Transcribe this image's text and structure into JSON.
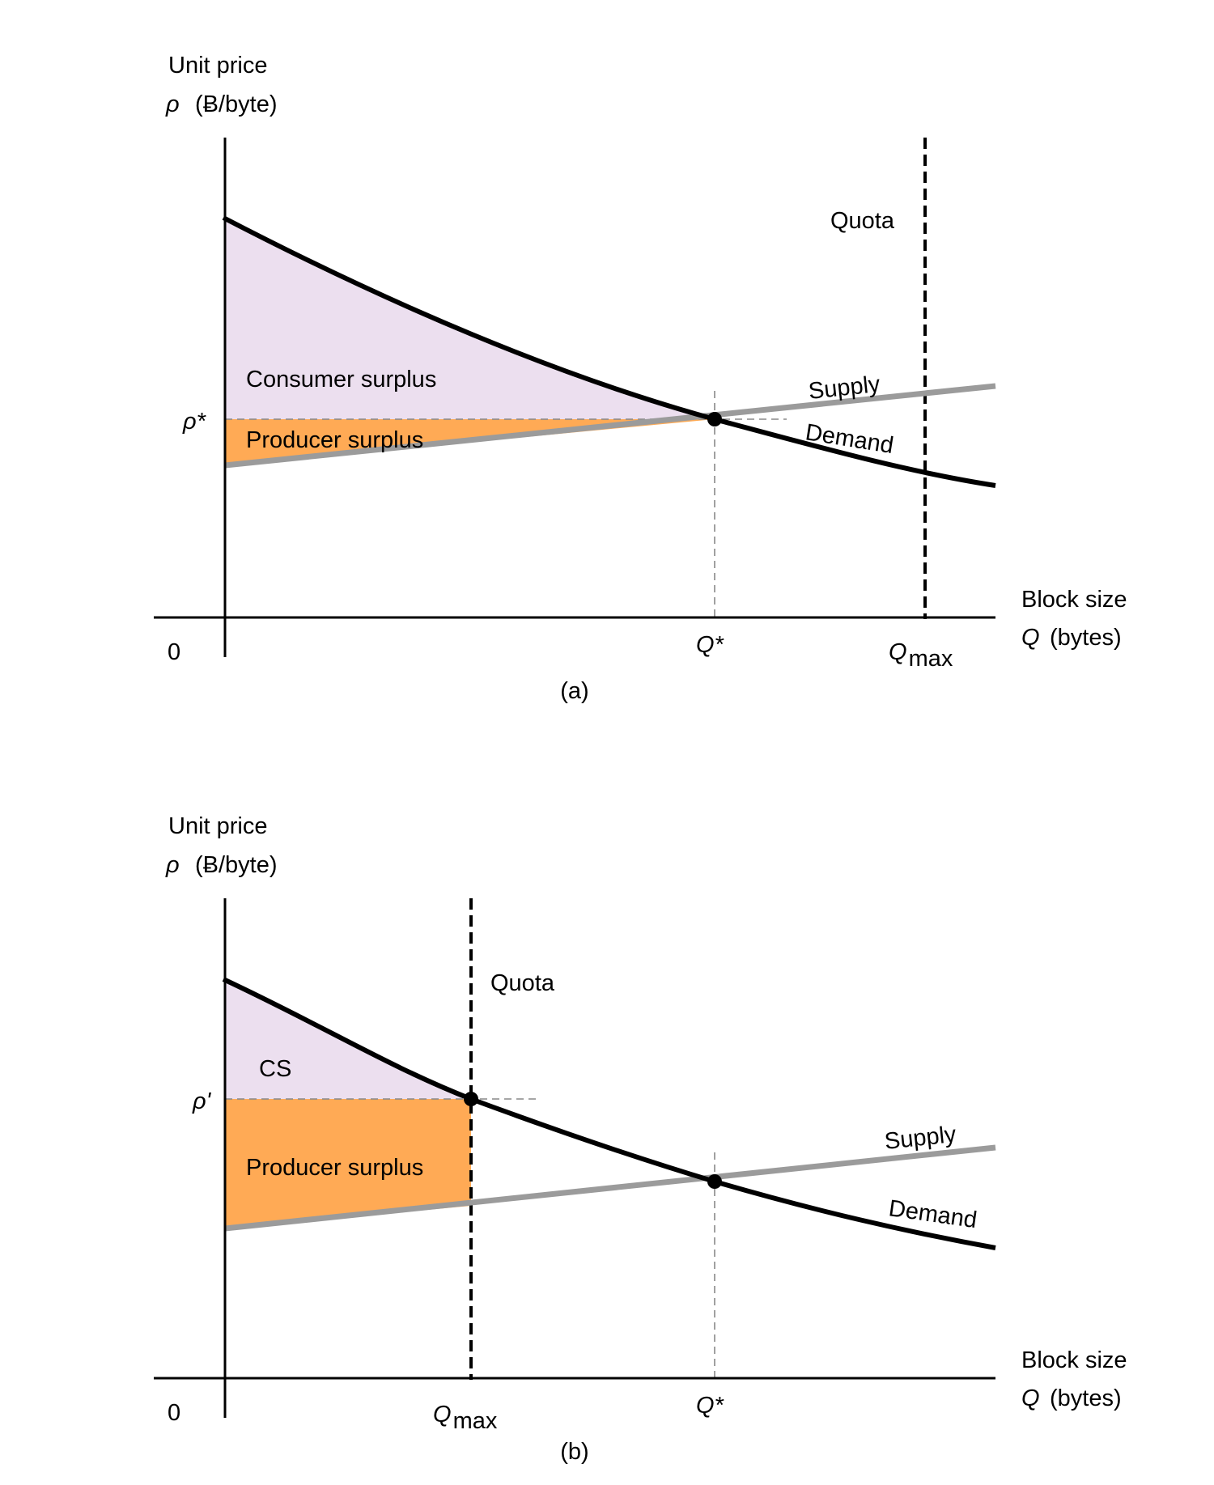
{
  "colors": {
    "consumer_surplus_fill": "#ECDFEF",
    "producer_surplus_fill": "#FFAA55",
    "supply_line": "#9B9B9B",
    "demand_line": "#000000",
    "reference_line": "#888888",
    "quota_line": "#000000",
    "axis": "#000000"
  },
  "panels": [
    {
      "caption": "(a)",
      "y_axis": {
        "label_line1": "Unit price",
        "symbol": "ρ",
        "unit": "(Ƀ/byte)"
      },
      "x_axis": {
        "label_line1": "Block size",
        "symbol": "Q",
        "unit": "(bytes)"
      },
      "origin_label": "0",
      "price_label": "ρ*",
      "qstar_label": "Q*",
      "qmax_base": "Q",
      "qmax_sub": "max",
      "quota_label": "Quota",
      "supply_label": "Supply",
      "demand_label": "Demand",
      "upper_area_label": "Consumer surplus",
      "lower_area_label": "Producer surplus"
    },
    {
      "caption": "(b)",
      "y_axis": {
        "label_line1": "Unit price",
        "symbol": "ρ",
        "unit": "(Ƀ/byte)"
      },
      "x_axis": {
        "label_line1": "Block size",
        "symbol": "Q",
        "unit": "(bytes)"
      },
      "origin_label": "0",
      "price_label": "ρ'",
      "qstar_label": "Q*",
      "qmax_base": "Q",
      "qmax_sub": "max",
      "quota_label": "Quota",
      "supply_label": "Supply",
      "demand_label": "Demand",
      "upper_area_label": "CS",
      "lower_area_label": "Producer surplus"
    }
  ]
}
